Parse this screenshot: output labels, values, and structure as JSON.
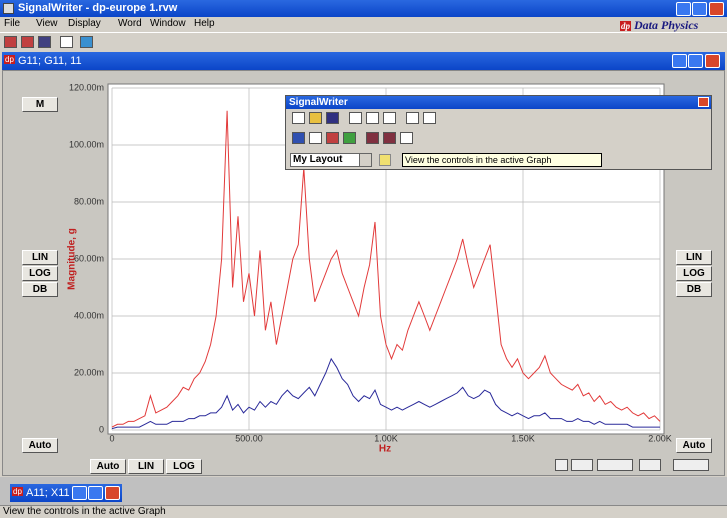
{
  "window": {
    "title": "SignalWriter - dp-europe 1.rvw"
  },
  "menu": [
    "File",
    "View",
    "Display",
    "Word",
    "Window",
    "Help"
  ],
  "app_icon": "dp",
  "logo": "Data Physics",
  "child": {
    "title": "G11; G11, 11"
  },
  "left_buttons": [
    "M",
    "LIN",
    "LOG",
    "DB",
    "Auto"
  ],
  "right_buttons": [
    "LIN",
    "LOG",
    "DB",
    "Auto"
  ],
  "bottom_buttons": [
    "Auto",
    "LIN",
    "LOG"
  ],
  "chart_data": {
    "type": "line",
    "xlabel": "Hz",
    "ylabel": "Magnitude, g",
    "xlim": [
      0,
      2000
    ],
    "ylim": [
      0,
      0.12
    ],
    "xticks": [
      0,
      {
        "value": 500,
        "label": "500.00"
      },
      {
        "value": 1000,
        "label": "1.00K"
      },
      {
        "value": 1500,
        "label": "1.50K"
      },
      {
        "value": 2000,
        "label": "2.00K"
      }
    ],
    "yticks": [
      0,
      {
        "value": 0.02,
        "label": "20.00m"
      },
      {
        "value": 0.04,
        "label": "40.00m"
      },
      {
        "value": 0.06,
        "label": "60.00m"
      },
      {
        "value": 0.08,
        "label": "80.00m"
      },
      {
        "value": 0.1,
        "label": "100.00m"
      },
      {
        "value": 0.12,
        "label": "120.00m"
      }
    ],
    "grid": true,
    "x": [
      0,
      20,
      40,
      60,
      80,
      100,
      120,
      140,
      160,
      180,
      200,
      220,
      240,
      260,
      280,
      300,
      320,
      340,
      360,
      380,
      400,
      420,
      440,
      460,
      480,
      500,
      520,
      540,
      560,
      580,
      600,
      620,
      640,
      660,
      680,
      700,
      720,
      740,
      760,
      780,
      800,
      820,
      840,
      860,
      880,
      900,
      920,
      940,
      960,
      980,
      1000,
      1020,
      1040,
      1060,
      1080,
      1100,
      1120,
      1140,
      1160,
      1180,
      1200,
      1220,
      1240,
      1260,
      1280,
      1300,
      1320,
      1340,
      1360,
      1380,
      1400,
      1420,
      1440,
      1460,
      1480,
      1500,
      1520,
      1540,
      1560,
      1580,
      1600,
      1620,
      1640,
      1660,
      1680,
      1700,
      1720,
      1740,
      1760,
      1780,
      1800,
      1820,
      1840,
      1860,
      1880,
      1900,
      1920,
      1940,
      1960,
      1980,
      2000
    ],
    "series": [
      {
        "color": "#e23a3a",
        "values": [
          0.001,
          0.002,
          0.002,
          0.003,
          0.003,
          0.004,
          0.005,
          0.012,
          0.006,
          0.007,
          0.008,
          0.01,
          0.012,
          0.015,
          0.014,
          0.018,
          0.02,
          0.024,
          0.03,
          0.04,
          0.06,
          0.112,
          0.05,
          0.075,
          0.045,
          0.055,
          0.04,
          0.063,
          0.035,
          0.045,
          0.03,
          0.04,
          0.05,
          0.06,
          0.065,
          0.092,
          0.06,
          0.045,
          0.05,
          0.055,
          0.06,
          0.063,
          0.055,
          0.05,
          0.045,
          0.04,
          0.05,
          0.058,
          0.073,
          0.04,
          0.03,
          0.025,
          0.03,
          0.028,
          0.035,
          0.04,
          0.045,
          0.04,
          0.035,
          0.04,
          0.045,
          0.05,
          0.055,
          0.06,
          0.067,
          0.058,
          0.05,
          0.055,
          0.06,
          0.065,
          0.048,
          0.03,
          0.025,
          0.022,
          0.025,
          0.02,
          0.018,
          0.02,
          0.022,
          0.026,
          0.02,
          0.018,
          0.016,
          0.015,
          0.014,
          0.016,
          0.012,
          0.013,
          0.01,
          0.012,
          0.009,
          0.01,
          0.008,
          0.007,
          0.008,
          0.006,
          0.005,
          0.006,
          0.004,
          0.005,
          0.003
        ]
      },
      {
        "color": "#2a2a9a",
        "values": [
          0.0005,
          0.001,
          0.001,
          0.001,
          0.001,
          0.001,
          0.002,
          0.003,
          0.002,
          0.002,
          0.002,
          0.003,
          0.003,
          0.003,
          0.004,
          0.004,
          0.005,
          0.005,
          0.006,
          0.006,
          0.008,
          0.012,
          0.007,
          0.009,
          0.006,
          0.008,
          0.007,
          0.01,
          0.008,
          0.01,
          0.009,
          0.012,
          0.014,
          0.012,
          0.011,
          0.013,
          0.015,
          0.012,
          0.016,
          0.02,
          0.025,
          0.022,
          0.018,
          0.016,
          0.012,
          0.01,
          0.012,
          0.011,
          0.014,
          0.009,
          0.008,
          0.007,
          0.008,
          0.007,
          0.008,
          0.009,
          0.01,
          0.009,
          0.008,
          0.009,
          0.01,
          0.011,
          0.012,
          0.013,
          0.015,
          0.012,
          0.011,
          0.012,
          0.014,
          0.013,
          0.009,
          0.007,
          0.006,
          0.005,
          0.006,
          0.005,
          0.004,
          0.005,
          0.005,
          0.006,
          0.004,
          0.004,
          0.004,
          0.003,
          0.003,
          0.004,
          0.003,
          0.003,
          0.002,
          0.003,
          0.002,
          0.002,
          0.002,
          0.002,
          0.002,
          0.001,
          0.001,
          0.001,
          0.001,
          0.001,
          0.001
        ]
      }
    ]
  },
  "toolbar_window": {
    "title": "SignalWriter",
    "layout": "My Layout",
    "tooltip": "View the controls in the active Graph"
  },
  "minimized": {
    "title": "A11; X11"
  },
  "status": "View the controls in the active Graph"
}
